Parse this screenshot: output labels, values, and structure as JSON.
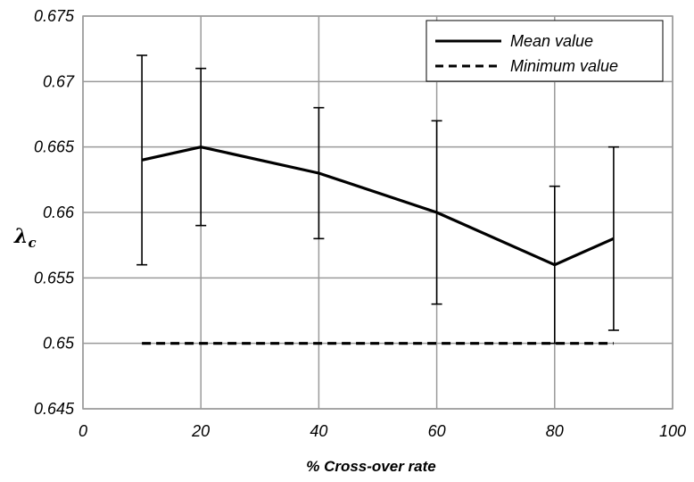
{
  "chart_data": {
    "type": "line",
    "xlabel": "% Cross-over rate",
    "ylabel": "λc",
    "xlim": [
      0,
      100
    ],
    "ylim": [
      0.645,
      0.675
    ],
    "x_ticks": [
      "0",
      "20",
      "40",
      "60",
      "80",
      "100"
    ],
    "y_ticks": [
      "0.645",
      "0.65",
      "0.655",
      "0.66",
      "0.665",
      "0.67",
      "0.675"
    ],
    "grid": true,
    "legend_position": "top-right",
    "series": [
      {
        "name": "Mean value",
        "style": "solid",
        "x": [
          10,
          20,
          40,
          60,
          80,
          90
        ],
        "values": [
          0.664,
          0.665,
          0.663,
          0.66,
          0.656,
          0.658
        ],
        "error_low": [
          0.656,
          0.659,
          0.658,
          0.653,
          0.65,
          0.651
        ],
        "error_high": [
          0.672,
          0.671,
          0.668,
          0.667,
          0.662,
          0.665
        ]
      },
      {
        "name": "Minimum value",
        "style": "dashed",
        "x": [
          10,
          90
        ],
        "values": [
          0.65,
          0.65
        ]
      }
    ]
  }
}
